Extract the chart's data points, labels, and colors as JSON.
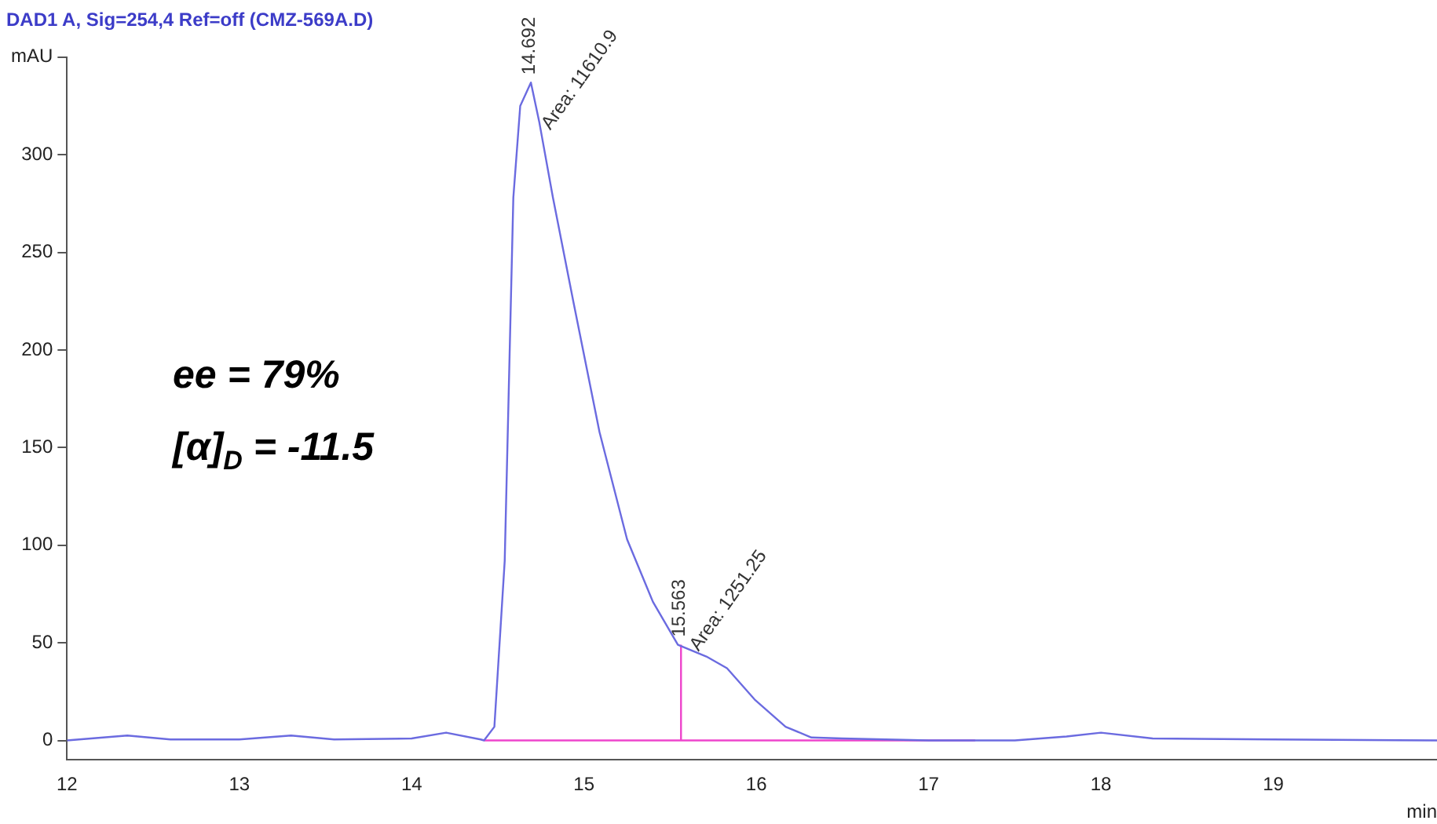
{
  "chart_data": {
    "type": "line",
    "title": "DAD1 A, Sig=254,4 Ref=off (CMZ-569A.D)",
    "xlabel": "min",
    "xlim": [
      12,
      19.95
    ],
    "xticks": [
      12,
      13,
      14,
      15,
      16,
      17,
      18,
      19
    ],
    "ylim": [
      -10,
      350
    ],
    "yticks": [
      0,
      50,
      100,
      150,
      200,
      250,
      300,
      {
        "value": 350,
        "label": "mAU"
      }
    ],
    "grid": false,
    "legend": false,
    "marker": "none",
    "line_style": "solid",
    "series": [
      {
        "color": "#6b6be0",
        "x": [
          12,
          12.35,
          12.6,
          13.0,
          13.3,
          13.55,
          14.0,
          14.2,
          14.4,
          14.42,
          14.48,
          14.54,
          14.59,
          14.63,
          14.692,
          14.74,
          14.82,
          14.94,
          15.09,
          15.25,
          15.4,
          15.545,
          15.71,
          15.83,
          15.99,
          16.17,
          16.32,
          16.5,
          17.0,
          17.5,
          17.8,
          18.0,
          18.3,
          19.0,
          19.95
        ],
        "values": [
          0,
          2.5,
          0.5,
          0.5,
          2.5,
          0.5,
          1,
          4,
          0.5,
          0,
          7,
          92,
          278,
          325,
          337,
          317,
          278,
          224,
          158,
          103,
          71,
          49,
          43,
          37,
          21,
          7,
          1.5,
          1,
          0,
          0,
          2,
          4,
          1,
          0.5,
          0
        ]
      },
      {
        "color": "#ee44cc",
        "x": [
          14.42,
          17.27
        ],
        "values": [
          0,
          0
        ]
      },
      {
        "color": "#ee44cc",
        "x": [
          15.563,
          15.563
        ],
        "values": [
          0,
          49
        ]
      }
    ],
    "annotations": [
      {
        "text": "14.692",
        "x": 14.692,
        "y": 337
      },
      {
        "text": "Area: 11610.9",
        "x": 14.74,
        "y": 312
      },
      {
        "text": "15.563",
        "x": 15.563,
        "y": 49
      },
      {
        "text": "Area: 1251.25",
        "x": 15.6,
        "y": 45
      },
      "ee  =  79%",
      "[α]$_{D}$  =  -11.5"
    ]
  }
}
